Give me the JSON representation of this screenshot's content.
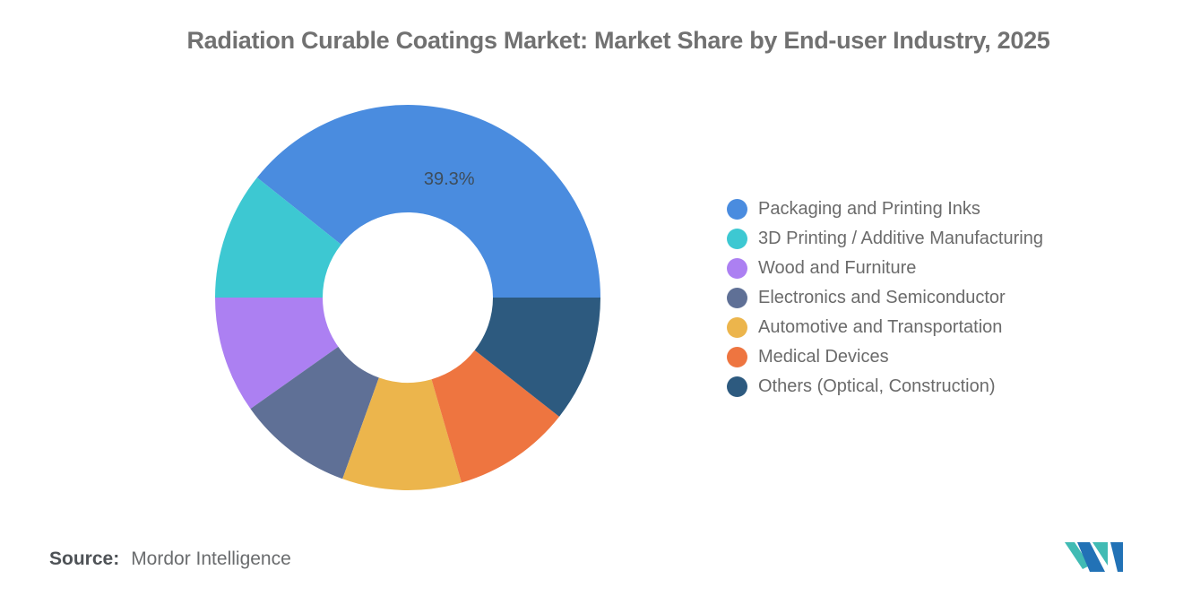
{
  "chart_data": {
    "type": "pie",
    "subtype": "donut",
    "title": "Radiation Curable Coatings Market: Market Share by End-user Industry, 2025",
    "start_angle_deg": 90,
    "direction": "counterclockwise",
    "inner_radius_ratio": 0.44,
    "legend_position": "right",
    "label_color": "#3E4D5B",
    "series": [
      {
        "name": "Packaging and Printing Inks",
        "value": 39.3,
        "color": "#4A8CDF",
        "label": "39.3%"
      },
      {
        "name": "3D Printing / Additive Manufacturing",
        "value": 10.7,
        "color": "#3DC8D2",
        "label": ""
      },
      {
        "name": "Wood and Furniture",
        "value": 9.8,
        "color": "#AC80F2",
        "label": ""
      },
      {
        "name": "Electronics and Semiconductor",
        "value": 9.7,
        "color": "#5F7096",
        "label": ""
      },
      {
        "name": "Automotive and Transportation",
        "value": 10.0,
        "color": "#ECB54C",
        "label": ""
      },
      {
        "name": "Medical Devices",
        "value": 9.9,
        "color": "#EE7540",
        "label": ""
      },
      {
        "name": "Others (Optical, Construction)",
        "value": 10.6,
        "color": "#2D5A7F",
        "label": ""
      }
    ]
  },
  "source": {
    "prefix": "Source:",
    "text": "Mordor Intelligence"
  },
  "logo": {
    "teal": "#41BBB4",
    "blue": "#2272B6"
  }
}
